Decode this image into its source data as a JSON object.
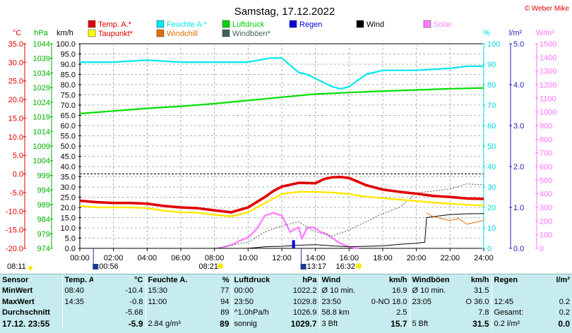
{
  "title": "Samstag, 17.12.2022",
  "copyright": "© Weber Mike",
  "colors": {
    "temp": "#e00000",
    "humidity": "#00e8f0",
    "pressure": "#00e000",
    "wind": "#000000",
    "solar": "#ff80ff",
    "dew": "#ffff00",
    "windchill": "#e07000",
    "gust": "#406060",
    "rain": "#0000e0",
    "panel": "#c7ecef"
  },
  "legend": [
    {
      "label": "Temp. A.*",
      "color": "#e00000"
    },
    {
      "label": "Feuchte A.*",
      "color": "#00e8f0"
    },
    {
      "label": "Luftdruck",
      "color": "#00d000"
    },
    {
      "label": "Regen",
      "color": "#0000e0"
    },
    {
      "label": "Wind",
      "color": "#000000"
    },
    {
      "label": "Solar",
      "color": "#ff80ff"
    },
    {
      "label": "Taupunkt*",
      "color": "#ffff00"
    },
    {
      "label": "Windchill",
      "color": "#e07000"
    },
    {
      "label": "Windböen*",
      "color": "#406060"
    }
  ],
  "axis_headers": {
    "temp": "°C",
    "pressure": "hPa",
    "wind": "km/h",
    "humidity": "%",
    "rain": "l/m²",
    "solar": "W/m²"
  },
  "axis_ticks": {
    "temp": [
      "35.0",
      "30.0",
      "25.0",
      "20.0",
      "15.0",
      "10.0",
      "5.0",
      "0.0",
      "-5.0",
      "-10.0",
      "-15.0",
      "-20.0"
    ],
    "pressure": [
      "1044",
      "1039",
      "1034",
      "1029",
      "1024",
      "1019",
      "1014",
      "1009",
      "1004",
      "999",
      "994",
      "989",
      "984",
      "979",
      "974"
    ],
    "wind": [
      "100.0",
      "95.0",
      "90.0",
      "85.0",
      "80.0",
      "75.0",
      "70.0",
      "65.0",
      "60.0",
      "55.0",
      "50.0",
      "45.0",
      "40.0",
      "35.0",
      "30.0",
      "25.0",
      "20.0",
      "15.0",
      "10.0",
      "5.0",
      "0.0"
    ],
    "humidity": [
      "100",
      "90",
      "80",
      "70",
      "60",
      "50",
      "40",
      "30",
      "20",
      "10",
      "0"
    ],
    "rain": [
      "5.0",
      "4.0",
      "3.0",
      "2.0",
      "1.0",
      "0.0"
    ],
    "solar": [
      "1500",
      "1400",
      "1300",
      "1200",
      "1100",
      "1000",
      "900",
      "800",
      "700",
      "600",
      "500",
      "400",
      "300",
      "200",
      "100",
      "0"
    ]
  },
  "time_ticks": [
    "00:00",
    "02:00",
    "04:00",
    "06:00",
    "08:00",
    "10:00",
    "12:00",
    "14:00",
    "16:00",
    "18:00",
    "20:00",
    "22:00",
    "24:00"
  ],
  "sun_markers": {
    "moonset": "00:56",
    "sunrise": "08:21",
    "moonrise": "13:17",
    "sunset": "16:32",
    "left": "08:11"
  },
  "chart_data": {
    "type": "line",
    "x_unit": "hours",
    "xlim": [
      0,
      24
    ],
    "series": [
      {
        "name": "Temp. A.*",
        "axis": "temp",
        "x": [
          0,
          1,
          2,
          3,
          4,
          5,
          6,
          7,
          8,
          9,
          10,
          11,
          11.5,
          12,
          13,
          14,
          14.5,
          15,
          15.5,
          16,
          17,
          18,
          19,
          20,
          21,
          22,
          23,
          24
        ],
        "values": [
          -7.2,
          -7.6,
          -7.8,
          -7.8,
          -8.0,
          -8.6,
          -9.0,
          -9.2,
          -9.8,
          -10.3,
          -9.0,
          -6.2,
          -4.6,
          -3.4,
          -2.4,
          -2.5,
          -1.4,
          -0.9,
          -0.8,
          -1.1,
          -3.0,
          -4.2,
          -4.8,
          -5.3,
          -5.9,
          -6.2,
          -6.6,
          -6.7
        ]
      },
      {
        "name": "Taupunkt*",
        "axis": "temp",
        "x": [
          0,
          1,
          2,
          3,
          4,
          5,
          6,
          7,
          8,
          9,
          10,
          11,
          12,
          13,
          14,
          15,
          16,
          17,
          18,
          19,
          20,
          21,
          22,
          23,
          24
        ],
        "values": [
          -8.6,
          -9.0,
          -9.0,
          -9.0,
          -9.2,
          -9.9,
          -10.3,
          -10.4,
          -11.0,
          -11.4,
          -10.3,
          -7.8,
          -5.4,
          -4.8,
          -4.8,
          -5.0,
          -5.4,
          -6.1,
          -6.5,
          -6.9,
          -7.3,
          -7.7,
          -8.0,
          -8.3,
          -8.5
        ]
      },
      {
        "name": "Feuchte A.*",
        "axis": "humidity",
        "x": [
          0,
          2,
          4,
          6,
          8,
          10,
          11.3,
          12,
          13,
          13.5,
          14,
          14.5,
          15,
          15.5,
          16,
          17,
          18,
          20,
          22,
          23,
          24
        ],
        "values": [
          91,
          91,
          92,
          91,
          91,
          91,
          93,
          93,
          86,
          85,
          83,
          81,
          79,
          78,
          79,
          85,
          87,
          87,
          88,
          89,
          89
        ]
      },
      {
        "name": "Luftdruck",
        "axis": "pressure",
        "x": [
          0,
          2,
          4,
          6,
          8,
          10,
          12,
          14,
          16,
          18,
          20,
          22,
          24
        ],
        "values": [
          1020.1,
          1021.0,
          1021.9,
          1022.6,
          1023.5,
          1024.6,
          1025.7,
          1026.8,
          1027.3,
          1027.8,
          1028.2,
          1028.6,
          1028.9
        ]
      },
      {
        "name": "Solar",
        "axis": "solar",
        "x": [
          8.3,
          9,
          9.5,
          10,
          10.5,
          11,
          11.5,
          12,
          12.5,
          13,
          13.2,
          13.5,
          13.8,
          14,
          14.3,
          14.6,
          15,
          15.3,
          15.6,
          16,
          16.3,
          16.6
        ],
        "values": [
          0,
          25,
          55,
          80,
          140,
          240,
          260,
          240,
          120,
          155,
          70,
          150,
          155,
          145,
          120,
          110,
          75,
          50,
          30,
          12,
          4,
          0
        ]
      },
      {
        "name": "Wind",
        "axis": "wind",
        "x": [
          0,
          8,
          9,
          10,
          11,
          12,
          13,
          14,
          15,
          16,
          17,
          18,
          19,
          20,
          20.5,
          20.6,
          21,
          22,
          23,
          24
        ],
        "values": [
          0,
          0,
          0,
          0,
          0.8,
          1.0,
          1.5,
          1.8,
          1.2,
          0.8,
          1.0,
          1.2,
          2.0,
          2.5,
          3.0,
          15.0,
          15.5,
          16.5,
          16.9,
          17.0
        ]
      },
      {
        "name": "Windböen*",
        "axis": "wind",
        "x": [
          0,
          8,
          10,
          11,
          12,
          13,
          14,
          15,
          16,
          17,
          18,
          19,
          20,
          21,
          22,
          23,
          24
        ],
        "values": [
          0,
          0,
          3,
          8,
          11,
          13,
          8,
          6,
          9,
          13,
          17,
          20,
          27,
          28,
          29,
          31.5,
          31
        ]
      },
      {
        "name": "Windchill",
        "axis": "temp",
        "x": [
          0,
          20,
          20.5,
          20.6,
          21,
          22,
          22.5,
          23,
          24
        ],
        "values": [
          null,
          null,
          null,
          -10.5,
          -11.5,
          -12.5,
          -12.0,
          -13.5,
          -12.5
        ]
      },
      {
        "name": "Regen",
        "axis": "rain",
        "x": [
          12.7
        ],
        "values": [
          0.2
        ]
      }
    ],
    "axes": {
      "temp": {
        "ylim": [
          -20,
          35
        ],
        "ylabel": "°C"
      },
      "pressure": {
        "ylim": [
          974,
          1044
        ],
        "ylabel": "hPa"
      },
      "wind": {
        "ylim": [
          0,
          100
        ],
        "ylabel": "km/h"
      },
      "humidity": {
        "ylim": [
          0,
          100
        ],
        "ylabel": "%"
      },
      "rain": {
        "ylim": [
          0,
          5
        ],
        "ylabel": "l/m²"
      },
      "solar": {
        "ylim": [
          0,
          1500
        ],
        "ylabel": "W/m²"
      }
    },
    "grid": true
  },
  "stats": {
    "header": [
      "Sensor",
      "Temp. A.",
      "°C",
      "Feuchte A.",
      "%",
      "Luftdruck",
      "hPa",
      "Wind",
      "km/h",
      "Windböen",
      "km/h",
      "Regen",
      "l/m²"
    ],
    "rows": [
      [
        "MinWert",
        "08:40",
        "-10.4",
        "15:30",
        "77",
        "00:00",
        "1022.2",
        "Ø 10 min.",
        "16.9",
        "Ø 10 min.",
        "31.5",
        "",
        ""
      ],
      [
        "MaxWert",
        "14:35",
        "-0.8",
        "11:00",
        "94",
        "23:50",
        "1029.8",
        "23:50",
        "0-NO 18.0",
        "23:05",
        "O 36.0",
        "12:45",
        "0.2"
      ],
      [
        "Durchschnitt",
        "",
        "-5.68",
        "",
        "89",
        "^1.0hPa/h",
        "1026.9",
        "58.8 km",
        "2.5",
        "",
        "7.8",
        "Gesamt:",
        "0.2"
      ],
      [
        "17.12. 23:55",
        "",
        "-5.9",
        "2.84 g/m³",
        "89",
        "sonnig",
        "1029.7",
        "3 Bft",
        "15.7",
        "5 Bft",
        "31.5",
        "0.2 l/m²",
        "0.0"
      ]
    ]
  }
}
